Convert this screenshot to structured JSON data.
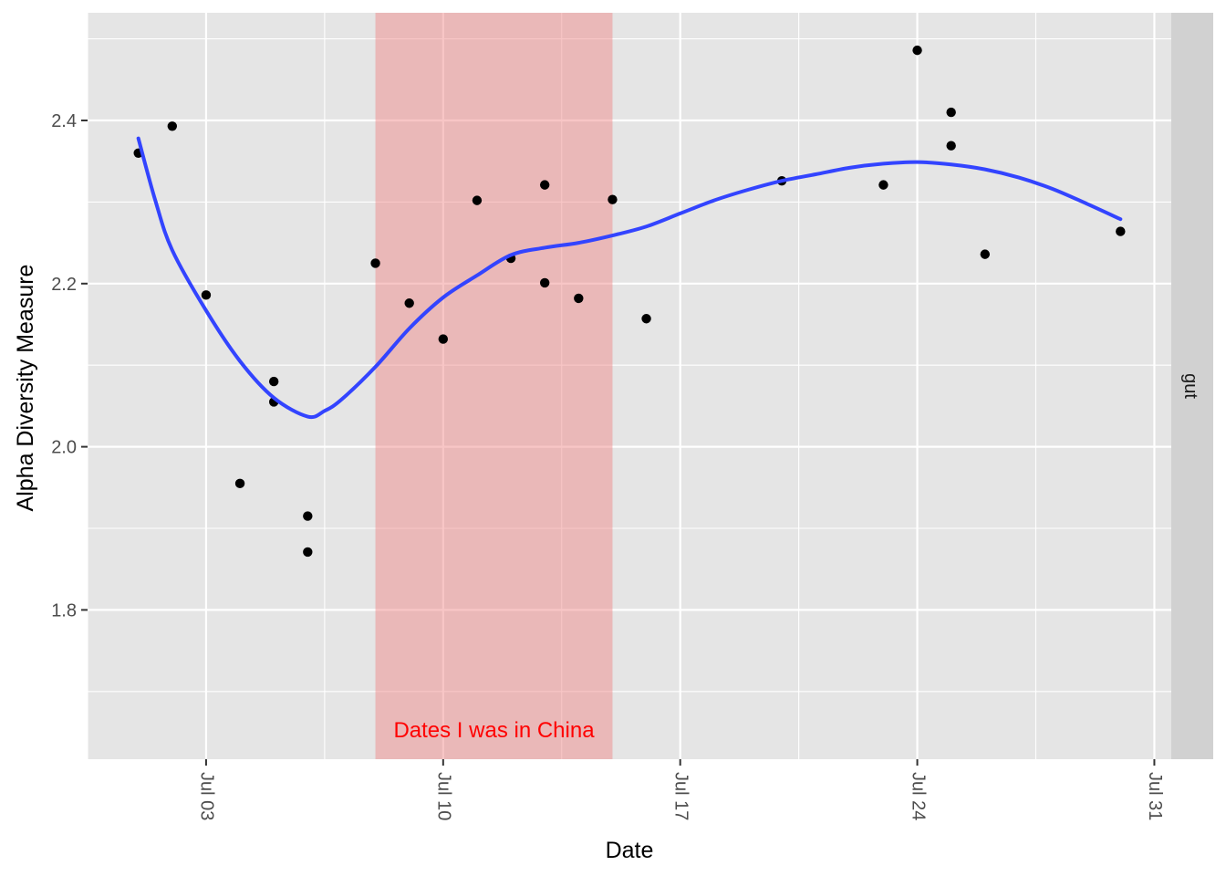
{
  "chart_data": {
    "type": "scatter",
    "xlabel": "Date",
    "ylabel": "Alpha Diversity Measure",
    "facet_label": "gut",
    "x_ticks": [
      "Jul 03",
      "Jul 10",
      "Jul 17",
      "Jul 24",
      "Jul 31"
    ],
    "y_ticks": [
      "1.8",
      "2.0",
      "2.2",
      "2.4"
    ],
    "xlim": [
      "2017-06-29.5",
      "2017-07-31.5"
    ],
    "ylim": [
      1.617,
      2.532
    ],
    "grid": true,
    "annotation": {
      "label": "Dates I was in China",
      "label_color": "#ff0000",
      "shaded_x_range": [
        "2017-07-08",
        "2017-07-14"
      ],
      "fill_color": "#f08080"
    },
    "points": [
      {
        "x": "2017-07-01",
        "y": 2.36
      },
      {
        "x": "2017-07-02",
        "y": 2.393
      },
      {
        "x": "2017-07-03",
        "y": 2.186
      },
      {
        "x": "2017-07-04",
        "y": 1.955
      },
      {
        "x": "2017-07-05",
        "y": 2.08
      },
      {
        "x": "2017-07-05",
        "y": 2.055
      },
      {
        "x": "2017-07-06",
        "y": 1.915
      },
      {
        "x": "2017-07-06",
        "y": 1.871
      },
      {
        "x": "2017-07-08",
        "y": 2.225
      },
      {
        "x": "2017-07-09",
        "y": 2.176
      },
      {
        "x": "2017-07-10",
        "y": 2.132
      },
      {
        "x": "2017-07-11",
        "y": 2.302
      },
      {
        "x": "2017-07-12",
        "y": 2.231
      },
      {
        "x": "2017-07-13",
        "y": 2.321
      },
      {
        "x": "2017-07-13",
        "y": 2.201
      },
      {
        "x": "2017-07-14",
        "y": 2.182
      },
      {
        "x": "2017-07-15",
        "y": 2.303
      },
      {
        "x": "2017-07-16",
        "y": 2.157
      },
      {
        "x": "2017-07-20",
        "y": 2.326
      },
      {
        "x": "2017-07-23",
        "y": 2.321
      },
      {
        "x": "2017-07-24",
        "y": 2.486
      },
      {
        "x": "2017-07-25",
        "y": 2.41
      },
      {
        "x": "2017-07-25",
        "y": 2.369
      },
      {
        "x": "2017-07-26",
        "y": 2.236
      },
      {
        "x": "2017-07-30",
        "y": 2.264
      }
    ],
    "smooth_line": {
      "color": "#3344ff",
      "points": [
        {
          "x": "2017-07-01",
          "y": 2.378
        },
        {
          "x": "2017-07-01.5",
          "y": 2.302
        },
        {
          "x": "2017-07-02",
          "y": 2.241
        },
        {
          "x": "2017-07-03",
          "y": 2.167
        },
        {
          "x": "2017-07-04",
          "y": 2.105
        },
        {
          "x": "2017-07-05",
          "y": 2.06
        },
        {
          "x": "2017-07-06",
          "y": 2.037
        },
        {
          "x": "2017-07-06.5",
          "y": 2.044
        },
        {
          "x": "2017-07-07",
          "y": 2.058
        },
        {
          "x": "2017-07-08",
          "y": 2.098
        },
        {
          "x": "2017-07-09",
          "y": 2.145
        },
        {
          "x": "2017-07-10",
          "y": 2.183
        },
        {
          "x": "2017-07-11",
          "y": 2.21
        },
        {
          "x": "2017-07-12",
          "y": 2.235
        },
        {
          "x": "2017-07-13",
          "y": 2.244
        },
        {
          "x": "2017-07-14",
          "y": 2.25
        },
        {
          "x": "2017-07-15",
          "y": 2.259
        },
        {
          "x": "2017-07-16",
          "y": 2.27
        },
        {
          "x": "2017-07-17",
          "y": 2.286
        },
        {
          "x": "2017-07-18",
          "y": 2.302
        },
        {
          "x": "2017-07-19",
          "y": 2.315
        },
        {
          "x": "2017-07-20",
          "y": 2.326
        },
        {
          "x": "2017-07-21",
          "y": 2.334
        },
        {
          "x": "2017-07-22",
          "y": 2.342
        },
        {
          "x": "2017-07-23",
          "y": 2.347
        },
        {
          "x": "2017-07-24",
          "y": 2.349
        },
        {
          "x": "2017-07-25",
          "y": 2.346
        },
        {
          "x": "2017-07-26",
          "y": 2.34
        },
        {
          "x": "2017-07-27",
          "y": 2.33
        },
        {
          "x": "2017-07-28",
          "y": 2.316
        },
        {
          "x": "2017-07-29",
          "y": 2.298
        },
        {
          "x": "2017-07-30",
          "y": 2.279
        }
      ]
    },
    "colors": {
      "panel_background": "#e5e5e5",
      "grid": "#ffffff",
      "strip_background": "#d1d1d1",
      "point": "#000000"
    }
  }
}
